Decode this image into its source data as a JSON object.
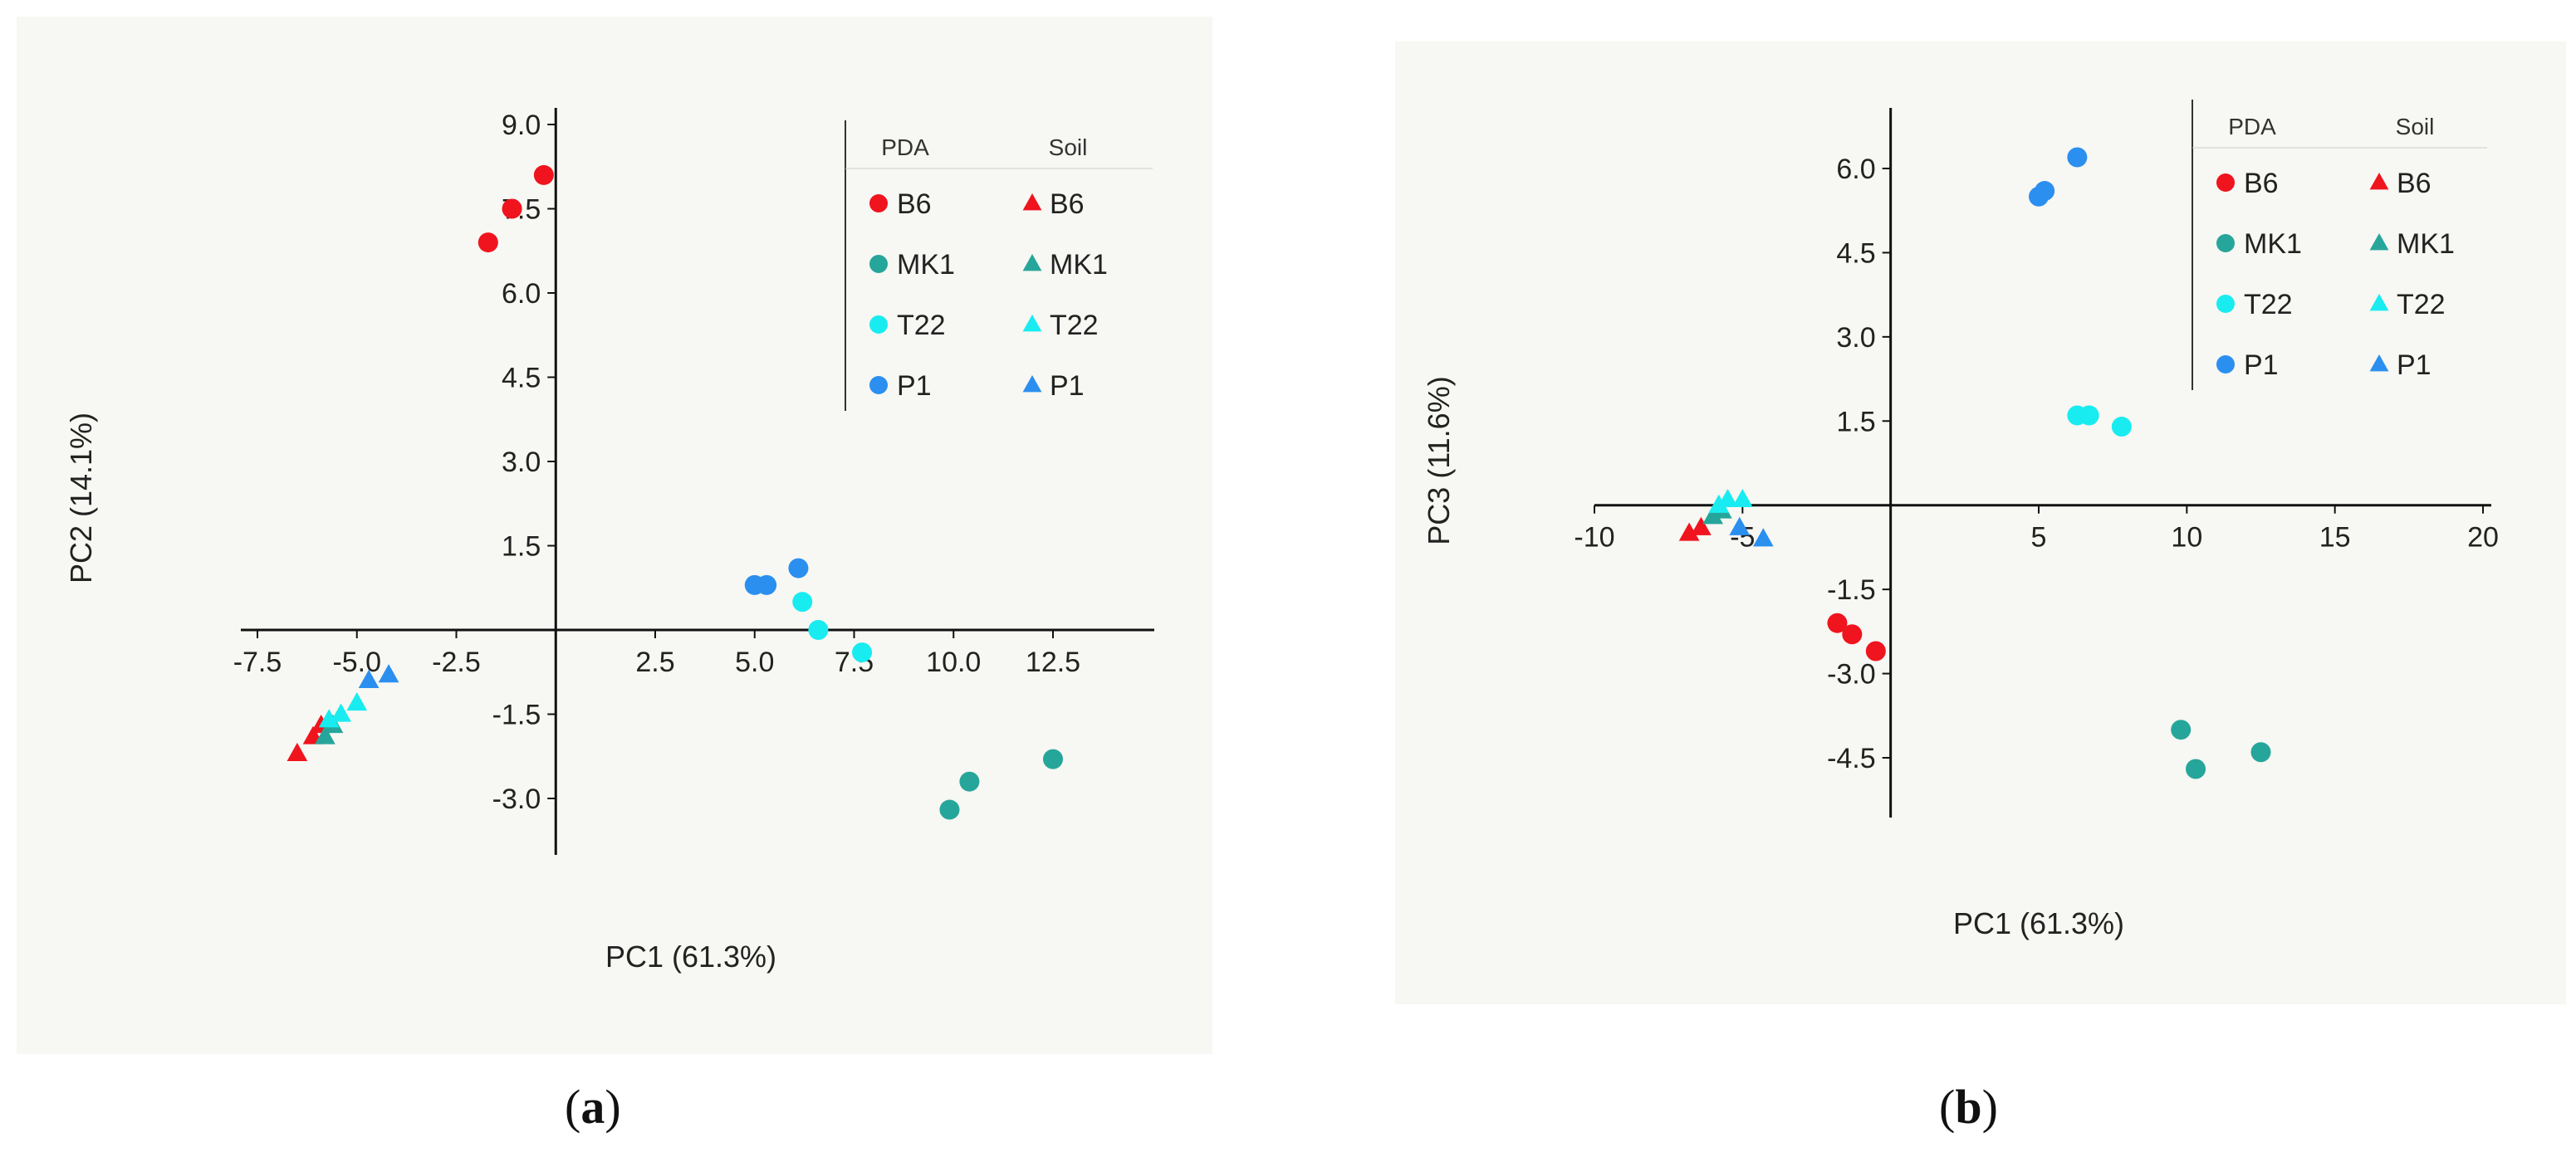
{
  "colors": {
    "B6": "#f0141e",
    "MK1": "#26a69a",
    "T22": "#18ecf0",
    "P1": "#2b8ff0"
  },
  "chart_data": [
    {
      "id": "a",
      "type": "scatter",
      "caption_open": "(",
      "caption_letter": "a",
      "caption_close": ")",
      "xlabel": "PC1 (61.3%)",
      "ylabel": "PC2 (14.1%)",
      "xlim": [
        -8.5,
        15.0
      ],
      "ylim": [
        -4.5,
        9.5
      ],
      "xticks": [
        -7.5,
        -5.0,
        -2.5,
        2.5,
        5.0,
        7.5,
        10.0,
        12.5
      ],
      "xtick_labels": [
        "-7.5",
        "-5.0",
        "-2.5",
        "2.5",
        "5.0",
        "7.5",
        "10.0",
        "12.5"
      ],
      "yticks": [
        9.0,
        7.5,
        6.0,
        4.5,
        3.0,
        1.5,
        -1.5,
        -3.0
      ],
      "ytick_labels": [
        "9.0",
        "7.5",
        "6.0",
        "4.5",
        "3.0",
        "1.5",
        "-1.5",
        "-3.0"
      ],
      "legend": {
        "header_pda": "PDA",
        "header_soil": "Soil",
        "placement": "top-right",
        "entries": [
          "B6",
          "MK1",
          "T22",
          "P1"
        ]
      },
      "series": [
        {
          "name": "B6",
          "medium": "PDA",
          "marker": "circle",
          "points": [
            [
              -0.3,
              8.1
            ],
            [
              -1.1,
              7.5
            ],
            [
              -1.7,
              6.9
            ]
          ]
        },
        {
          "name": "MK1",
          "medium": "PDA",
          "marker": "circle",
          "points": [
            [
              12.5,
              -2.3
            ],
            [
              10.4,
              -2.7
            ],
            [
              9.9,
              -3.2
            ]
          ]
        },
        {
          "name": "T22",
          "medium": "PDA",
          "marker": "circle",
          "points": [
            [
              6.2,
              0.5
            ],
            [
              6.6,
              0.0
            ],
            [
              7.7,
              -0.4
            ]
          ]
        },
        {
          "name": "P1",
          "medium": "PDA",
          "marker": "circle",
          "points": [
            [
              6.1,
              1.1
            ],
            [
              5.0,
              0.8
            ],
            [
              5.3,
              0.8
            ]
          ]
        },
        {
          "name": "B6",
          "medium": "Soil",
          "marker": "triangle",
          "points": [
            [
              -6.5,
              -2.2
            ],
            [
              -6.1,
              -1.9
            ],
            [
              -5.9,
              -1.7
            ]
          ]
        },
        {
          "name": "MK1",
          "medium": "Soil",
          "marker": "triangle",
          "points": [
            [
              -5.8,
              -1.9
            ],
            [
              -5.6,
              -1.7
            ]
          ]
        },
        {
          "name": "T22",
          "medium": "Soil",
          "marker": "triangle",
          "points": [
            [
              -5.4,
              -1.5
            ],
            [
              -5.0,
              -1.3
            ],
            [
              -5.7,
              -1.6
            ]
          ]
        },
        {
          "name": "P1",
          "medium": "Soil",
          "marker": "triangle",
          "points": [
            [
              -4.7,
              -0.9
            ],
            [
              -4.2,
              -0.8
            ]
          ]
        }
      ]
    },
    {
      "id": "b",
      "type": "scatter",
      "caption_open": "(",
      "caption_letter": "b",
      "caption_close": ")",
      "xlabel": "PC1 (61.3%)",
      "ylabel": "PC3 (11.6%)",
      "xlim": [
        -10.5,
        20.5
      ],
      "ylim": [
        -5.5,
        7.0
      ],
      "xticks": [
        -10,
        -5,
        5,
        10,
        15,
        20
      ],
      "xtick_labels": [
        "-10",
        "-5",
        "5",
        "10",
        "15",
        "20"
      ],
      "yticks": [
        6.0,
        4.5,
        3.0,
        1.5,
        -1.5,
        -3.0,
        -4.5
      ],
      "ytick_labels": [
        "6.0",
        "4.5",
        "3.0",
        "1.5",
        "-1.5",
        "-3.0",
        "-4.5"
      ],
      "legend": {
        "header_pda": "PDA",
        "header_soil": "Soil",
        "placement": "top-right",
        "entries": [
          "B6",
          "MK1",
          "T22",
          "P1"
        ]
      },
      "series": [
        {
          "name": "B6",
          "medium": "PDA",
          "marker": "circle",
          "points": [
            [
              -1.8,
              -2.1
            ],
            [
              -1.3,
              -2.3
            ],
            [
              -0.5,
              -2.6
            ]
          ]
        },
        {
          "name": "MK1",
          "medium": "PDA",
          "marker": "circle",
          "points": [
            [
              9.8,
              -4.0
            ],
            [
              10.3,
              -4.7
            ],
            [
              12.5,
              -4.4
            ]
          ]
        },
        {
          "name": "T22",
          "medium": "PDA",
          "marker": "circle",
          "points": [
            [
              6.3,
              1.6
            ],
            [
              6.7,
              1.6
            ],
            [
              7.8,
              1.4
            ]
          ]
        },
        {
          "name": "P1",
          "medium": "PDA",
          "marker": "circle",
          "points": [
            [
              6.3,
              6.2
            ],
            [
              5.2,
              5.6
            ],
            [
              5.0,
              5.5
            ]
          ]
        },
        {
          "name": "B6",
          "medium": "Soil",
          "marker": "triangle",
          "points": [
            [
              -6.8,
              -0.5
            ],
            [
              -6.4,
              -0.4
            ]
          ]
        },
        {
          "name": "MK1",
          "medium": "Soil",
          "marker": "triangle",
          "points": [
            [
              -6.0,
              -0.2
            ],
            [
              -5.7,
              -0.1
            ]
          ]
        },
        {
          "name": "T22",
          "medium": "Soil",
          "marker": "triangle",
          "points": [
            [
              -5.5,
              0.1
            ],
            [
              -5.0,
              0.1
            ],
            [
              -5.8,
              0.0
            ]
          ]
        },
        {
          "name": "P1",
          "medium": "Soil",
          "marker": "triangle",
          "points": [
            [
              -5.1,
              -0.4
            ],
            [
              -4.3,
              -0.6
            ]
          ]
        }
      ]
    }
  ]
}
